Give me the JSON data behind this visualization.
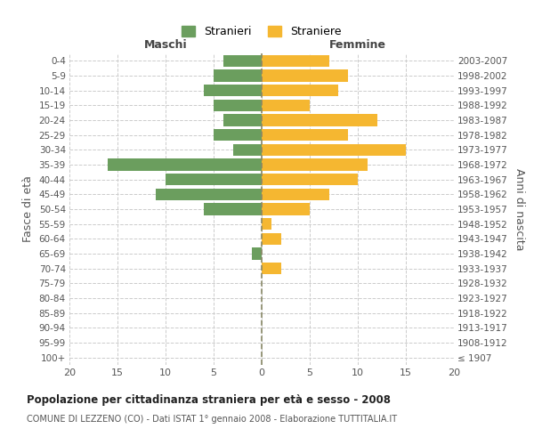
{
  "age_groups": [
    "100+",
    "95-99",
    "90-94",
    "85-89",
    "80-84",
    "75-79",
    "70-74",
    "65-69",
    "60-64",
    "55-59",
    "50-54",
    "45-49",
    "40-44",
    "35-39",
    "30-34",
    "25-29",
    "20-24",
    "15-19",
    "10-14",
    "5-9",
    "0-4"
  ],
  "birth_years": [
    "≤ 1907",
    "1908-1912",
    "1913-1917",
    "1918-1922",
    "1923-1927",
    "1928-1932",
    "1933-1937",
    "1938-1942",
    "1943-1947",
    "1948-1952",
    "1953-1957",
    "1958-1962",
    "1963-1967",
    "1968-1972",
    "1973-1977",
    "1978-1982",
    "1983-1987",
    "1988-1992",
    "1993-1997",
    "1998-2002",
    "2003-2007"
  ],
  "maschi": [
    0,
    0,
    0,
    0,
    0,
    0,
    0,
    1,
    0,
    0,
    6,
    11,
    10,
    16,
    3,
    5,
    4,
    5,
    6,
    5,
    4
  ],
  "femmine": [
    0,
    0,
    0,
    0,
    0,
    0,
    2,
    0,
    2,
    1,
    5,
    7,
    10,
    11,
    15,
    9,
    12,
    5,
    8,
    9,
    7
  ],
  "color_maschi": "#6b9e5e",
  "color_femmine": "#f5b731",
  "xlim": 20,
  "title": "Popolazione per cittadinanza straniera per età e sesso - 2008",
  "subtitle": "COMUNE DI LEZZENO (CO) - Dati ISTAT 1° gennaio 2008 - Elaborazione TUTTITALIA.IT",
  "ylabel_left": "Fasce di età",
  "ylabel_right": "Anni di nascita",
  "legend_maschi": "Stranieri",
  "legend_femmine": "Straniere",
  "header_maschi": "Maschi",
  "header_femmine": "Femmine",
  "bg_color": "#ffffff",
  "grid_color": "#cccccc",
  "bar_height": 0.8
}
